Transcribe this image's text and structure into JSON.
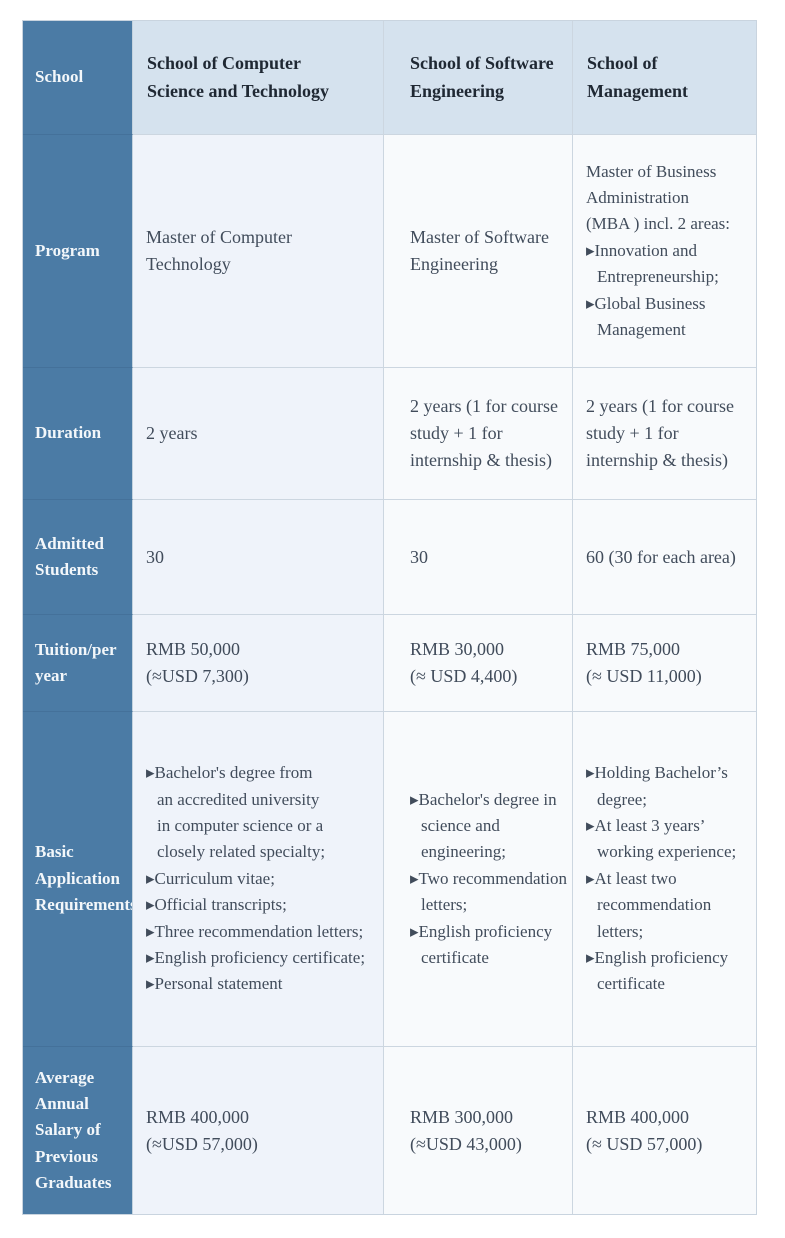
{
  "colors": {
    "header_column_bg": "#4b7ba5",
    "header_row_bg": "#d5e2ee",
    "body_first_column_bg": "#eff3fa",
    "body_bg": "#f8fafc",
    "grid_line": "#ccd6e0",
    "header_text": "#1f2833",
    "body_text": "#414c5b",
    "label_text": "#f3f7fa"
  },
  "bullet_glyph": "▸",
  "disp": {
    "corner": "School",
    "heads": [
      "School of Computer\nScience and Technology",
      "School of Software\nEngineering",
      "School of\nManagement"
    ],
    "labels": {
      "program": "Program",
      "duration": "Duration",
      "admitted": "Admitted\nStudents",
      "tuition": "Tuition/per\nyear",
      "requirements": "Basic\nApplication\nRequirements",
      "salary": "Average\nAnnual\nSalary of\nPrevious\nGraduates"
    },
    "program": {
      "cs": "Master of Computer\nTechnology",
      "se": "Master of Software\nEngineering",
      "mgmt_intro": "Master of Business\nAdministration\n(MBA ) incl. 2 areas:",
      "mgmt_b": [
        "▸Innovation and\nEntrepreneurship;",
        "▸Global Business\nManagement"
      ]
    },
    "duration": {
      "cs": "2 years",
      "se": "2 years (1 for course\nstudy + 1 for\ninternship & thesis)",
      "mgmt": "2 years (1 for course\nstudy + 1 for\ninternship & thesis)"
    },
    "admitted": {
      "cs": "30",
      "se": "30",
      "mgmt": "60 (30 for each area)"
    },
    "tuition": {
      "cs": "RMB 50,000\n(≈USD 7,300)",
      "se": "RMB 30,000\n(≈ USD 4,400)",
      "mgmt": "RMB 75,000\n(≈ USD 11,000)"
    },
    "req": {
      "cs": [
        "▸Bachelor's degree from\nan accredited university\nin computer science or a\nclosely related specialty;",
        "▸Curriculum vitae;",
        "▸Official transcripts;",
        "▸Three recommendation letters;",
        "▸English proficiency certificate;",
        "▸Personal statement"
      ],
      "se": [
        "▸Bachelor's degree in\nscience and\nengineering;",
        "▸Two recommendation\nletters;",
        "▸English proficiency\ncertificate"
      ],
      "mgmt": [
        "▸Holding Bachelor’s\ndegree;",
        "▸At least 3 years’\nworking experience;",
        "▸At least two\nrecommendation letters;",
        "▸English proficiency\ncertificate"
      ]
    },
    "salary": {
      "cs": "RMB 400,000\n(≈USD 57,000)",
      "se": "RMB 300,000\n(≈USD 43,000)",
      "mgmt": "RMB 400,000\n(≈ USD 57,000)"
    }
  },
  "chart_data": {
    "type": "table",
    "title": "",
    "columns": [
      "School",
      "School of Computer Science and Technology",
      "School of Software Engineering",
      "School of Management"
    ],
    "rows": [
      [
        "Program",
        "Master of Computer Technology",
        "Master of Software Engineering",
        "Master of Business Administration (MBA ) incl. 2 areas: Innovation and Entrepreneurship; Global Business Management"
      ],
      [
        "Duration",
        "2 years",
        "2 years (1 for course study + 1 for internship & thesis)",
        "2 years (1 for course study + 1 for internship & thesis)"
      ],
      [
        "Admitted Students",
        "30",
        "30",
        "60 (30 for each area)"
      ],
      [
        "Tuition/per year",
        "RMB 50,000 (≈USD 7,300)",
        "RMB 30,000 (≈ USD 4,400)",
        "RMB 75,000 (≈ USD 11,000)"
      ],
      [
        "Basic Application Requirements",
        "Bachelor's degree from an accredited university in computer science or a closely related specialty; Curriculum vitae; Official transcripts; Three recommendation letters; English proficiency certificate; Personal statement",
        "Bachelor's degree in science and engineering; Two recommendation letters; English proficiency certificate",
        "Holding Bachelor’s degree; At least 3 years’ working experience; At least two recommendation letters; English proficiency certificate"
      ],
      [
        "Average Annual Salary of Previous Graduates",
        "RMB 400,000 (≈USD 57,000)",
        "RMB 300,000 (≈USD 43,000)",
        "RMB 400,000 (≈ USD 57,000)"
      ]
    ]
  }
}
